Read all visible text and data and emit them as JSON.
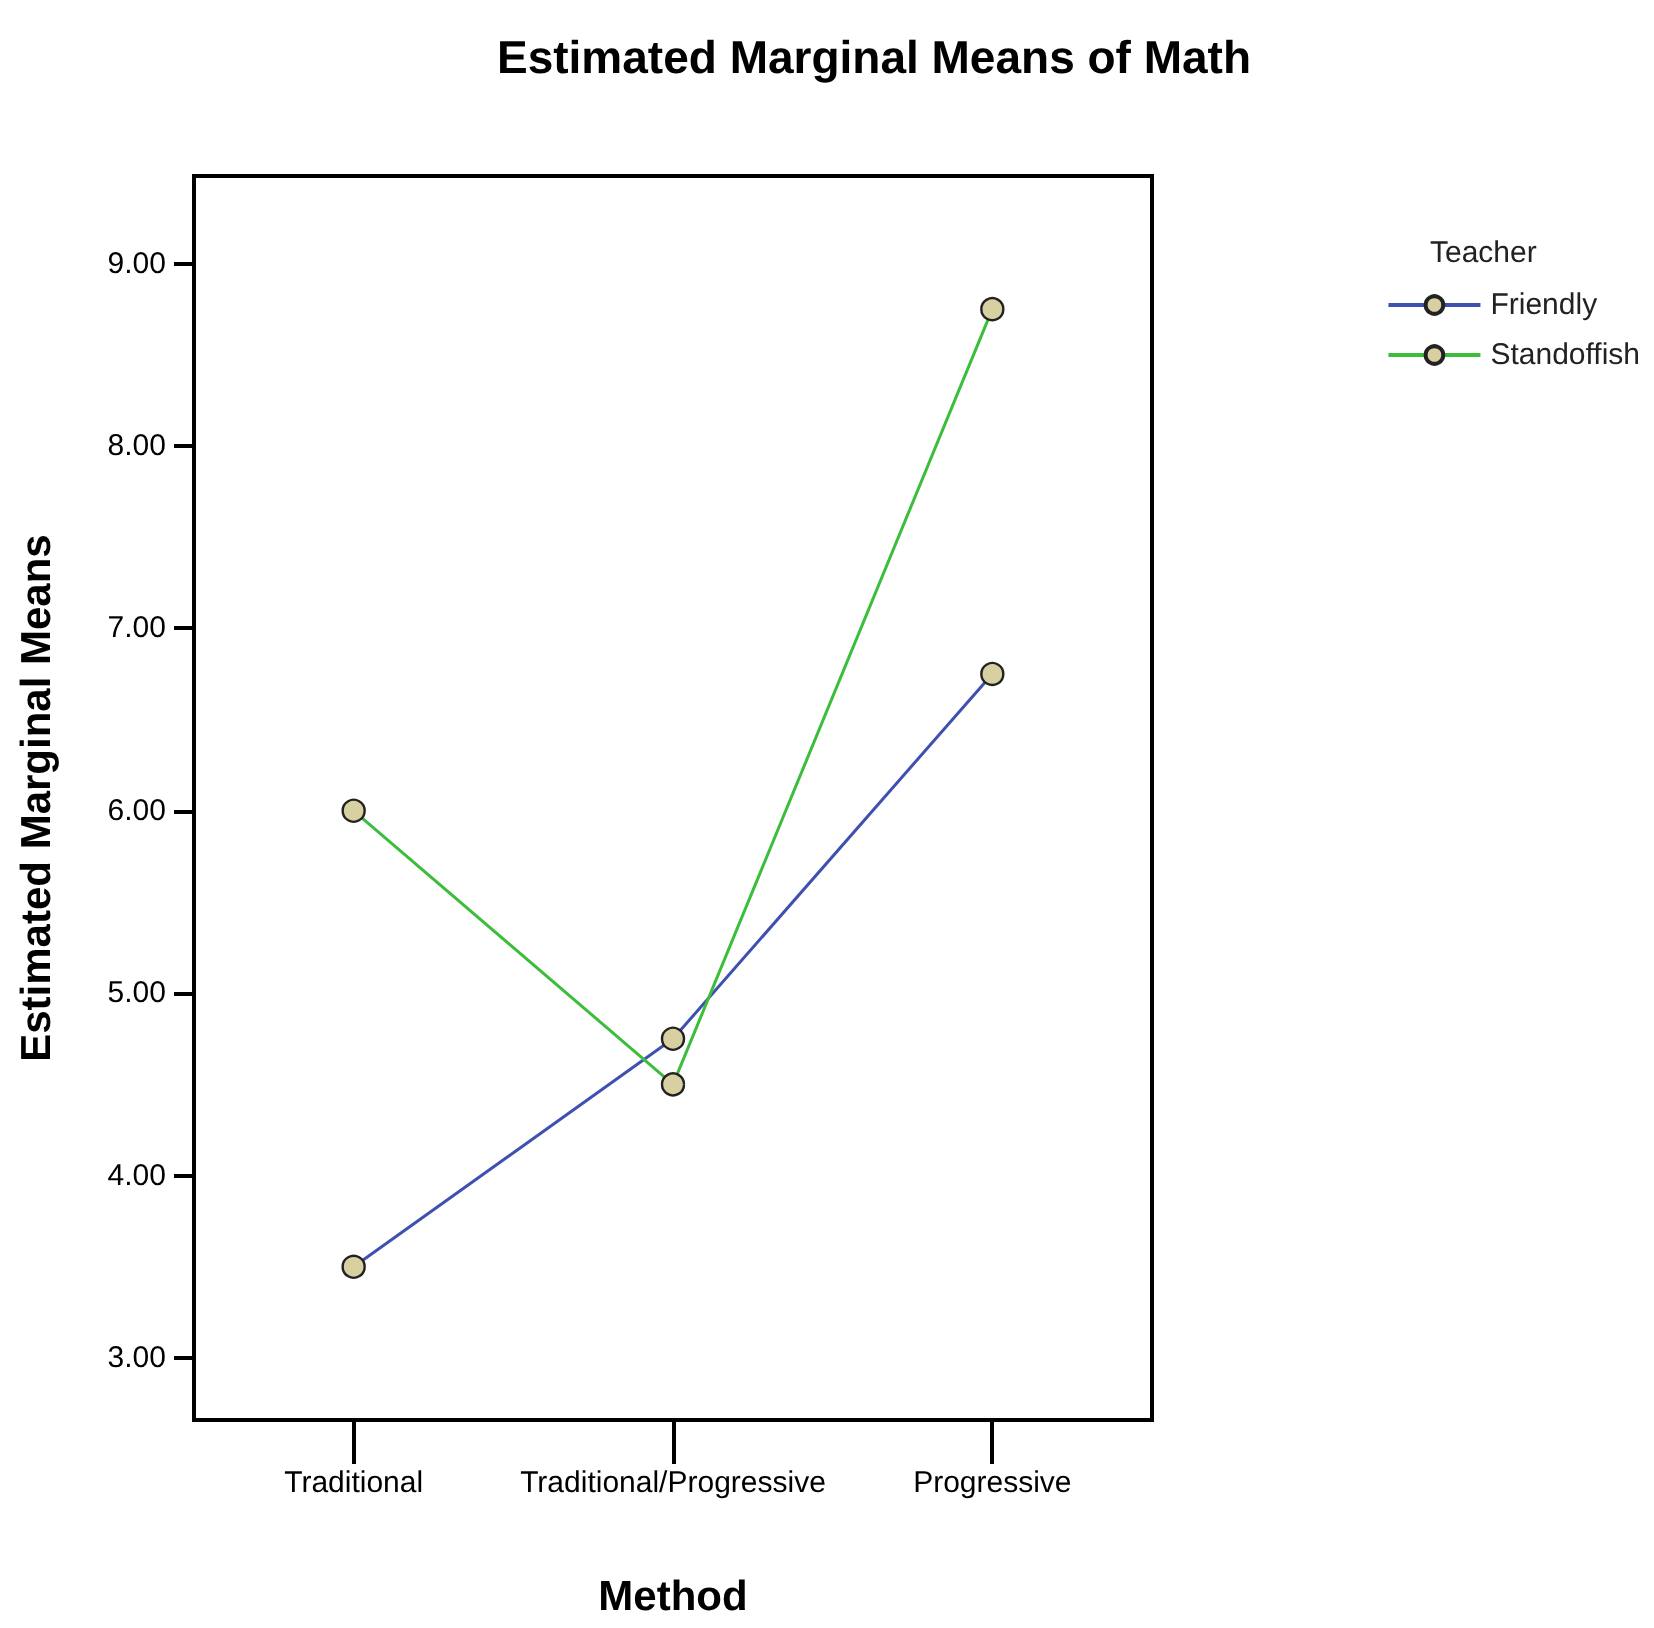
{
  "chart_data": {
    "type": "line",
    "title": "Estimated Marginal Means of Math",
    "xlabel": "Method",
    "ylabel": "Estimated Marginal Means",
    "legend_title": "Teacher",
    "categories": [
      "Traditional",
      "Traditional/Progressive",
      "Progressive"
    ],
    "series": [
      {
        "name": "Friendly",
        "color": "#3f51b0",
        "values": [
          3.5,
          4.75,
          6.75
        ]
      },
      {
        "name": "Standoffish",
        "color": "#3cbd3c",
        "values": [
          6.0,
          4.5,
          8.75
        ]
      }
    ],
    "ylim": [
      2.66,
      9.48
    ],
    "yticks": [
      {
        "value": 3,
        "label": "3.00"
      },
      {
        "value": 4,
        "label": "4.00"
      },
      {
        "value": 5,
        "label": "5.00"
      },
      {
        "value": 6,
        "label": "6.00"
      },
      {
        "value": 7,
        "label": "7.00"
      },
      {
        "value": 8,
        "label": "8.00"
      },
      {
        "value": 9,
        "label": "9.00"
      }
    ],
    "marker": "circle",
    "line_style": "solid",
    "grid": false,
    "legend": "top right"
  }
}
